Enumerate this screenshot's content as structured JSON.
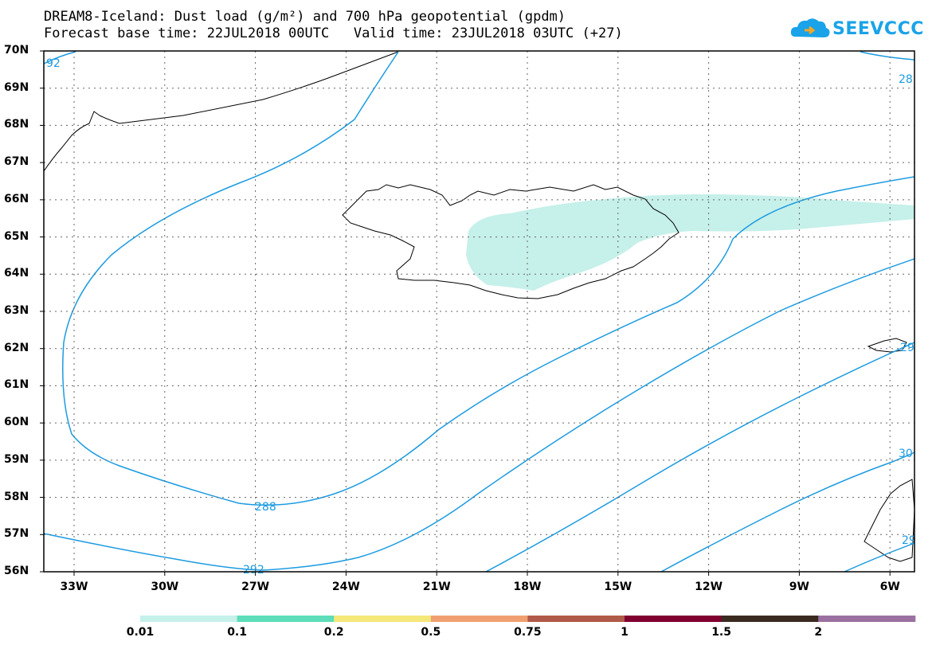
{
  "header": {
    "title": "DREAM8-Iceland: Dust load (g/m²) and 700 hPa geopotential (gpdm)",
    "subtitle": "Forecast base time: 22JUL2018 00UTC   Valid time: 23JUL2018 03UTC (+27)"
  },
  "logo": {
    "text": "SEEVCCC",
    "color": "#1aa3e8"
  },
  "axes": {
    "lat_labels": [
      "70N",
      "69N",
      "68N",
      "67N",
      "66N",
      "65N",
      "64N",
      "63N",
      "62N",
      "61N",
      "60N",
      "59N",
      "58N",
      "57N",
      "56N"
    ],
    "lon_labels": [
      "33W",
      "30W",
      "27W",
      "24W",
      "21W",
      "18W",
      "15W",
      "12W",
      "9W",
      "6W"
    ]
  },
  "contours": {
    "labels": [
      "92",
      "288",
      "292",
      "28",
      "29",
      "30",
      "29"
    ],
    "color": "#1c9be0"
  },
  "dust_plume_color": "#c6f0ea",
  "colorbar": {
    "colors": [
      "#c6f0ea",
      "#5dddb8",
      "#f5e87a",
      "#f0a070",
      "#b05a4a",
      "#800030",
      "#3a2a20",
      "#9a70a0"
    ],
    "labels": [
      "0.01",
      "0.1",
      "0.2",
      "0.5",
      "0.75",
      "1",
      "1.5",
      "2"
    ]
  }
}
